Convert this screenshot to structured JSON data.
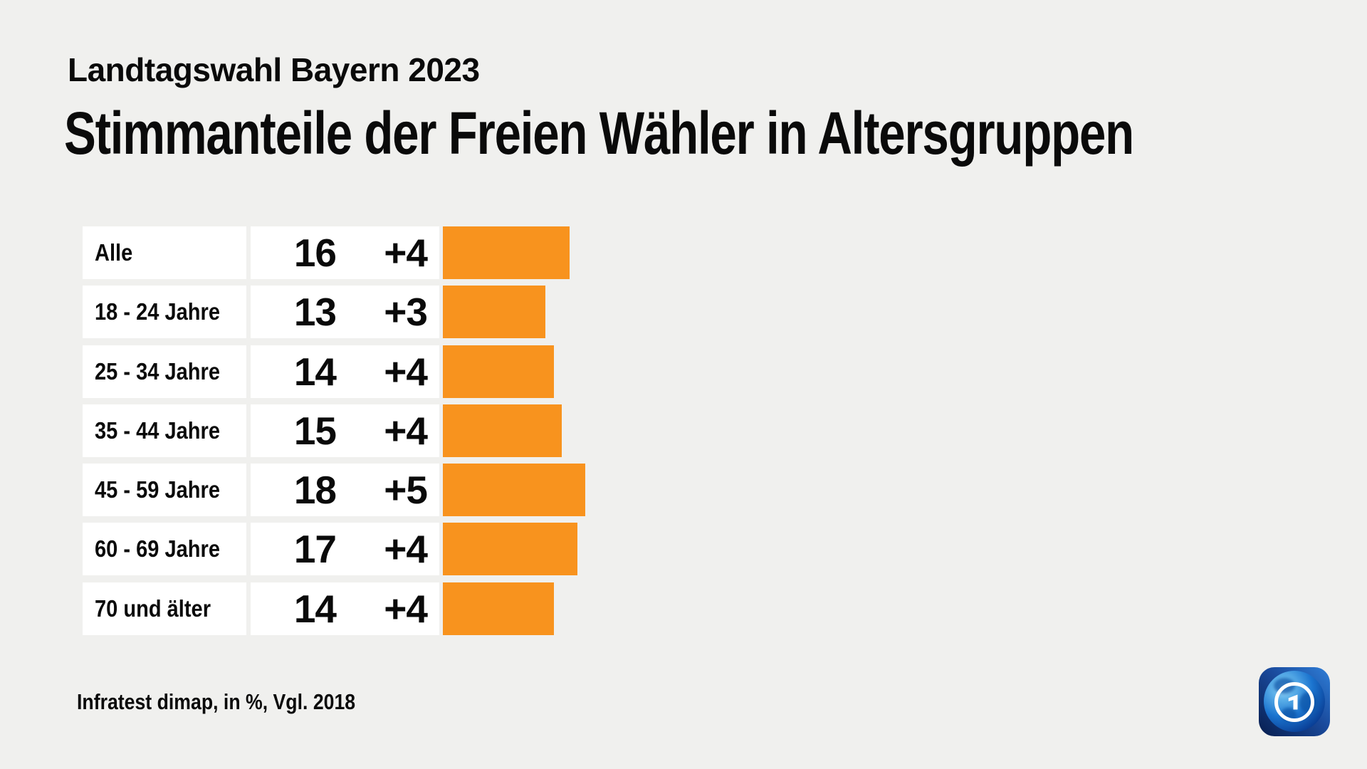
{
  "header": {
    "kicker": "Landtagswahl Bayern 2023",
    "title": "Stimmanteile der Freien Wähler in Altersgruppen"
  },
  "chart_data": {
    "type": "bar",
    "title": "Stimmanteile der Freien Wähler in Altersgruppen",
    "subtitle": "Landtagswahl Bayern 2023",
    "categories": [
      "Alle",
      "18 - 24 Jahre",
      "25 - 34 Jahre",
      "35 - 44 Jahre",
      "45 - 59 Jahre",
      "60 - 69 Jahre",
      "70 und älter"
    ],
    "values": [
      16,
      13,
      14,
      15,
      18,
      17,
      14
    ],
    "deltas": [
      "+4",
      "+3",
      "+4",
      "+4",
      "+5",
      "+4",
      "+4"
    ],
    "unit": "%",
    "comparison": "Vgl. 2018",
    "xlim": [
      0,
      18
    ],
    "bar_color": "#f8931e",
    "orientation": "horizontal",
    "grid": false,
    "legend": "none"
  },
  "footer": {
    "source": "Infratest dimap, in %, Vgl. 2018"
  },
  "logo": {
    "name": "ARD tagesschau"
  }
}
